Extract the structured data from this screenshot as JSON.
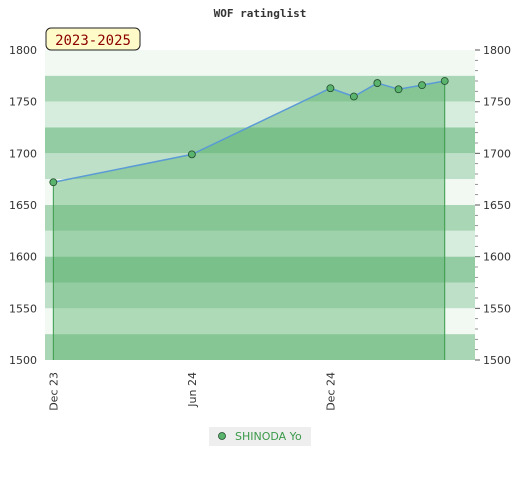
{
  "chart_data": {
    "type": "area",
    "title": "WOF ratinglist",
    "period_badge": "2023-2025",
    "x_ticks": [
      "Dec 23",
      "Jun 24",
      "Dec 24"
    ],
    "x_tick_dates": [
      "2023-12-01",
      "2024-06-01",
      "2024-12-01"
    ],
    "x_range": [
      "2023-11-20",
      "2025-06-10"
    ],
    "ylim": [
      1500,
      1800
    ],
    "y_ticks": [
      1500,
      1550,
      1600,
      1650,
      1700,
      1750,
      1800
    ],
    "y_axis": "both sides",
    "series": [
      {
        "name": "SHINODA Yo",
        "dates": [
          "2023-12-01",
          "2024-06-01",
          "2024-12-01",
          "2025-01-01",
          "2025-02-01",
          "2025-03-01",
          "2025-04-01",
          "2025-05-01"
        ],
        "values": [
          1672,
          1699,
          1763,
          1755,
          1768,
          1762,
          1766,
          1770
        ]
      }
    ],
    "legend": "bottom-center",
    "colors": {
      "line": "#5b9bd5",
      "area": "#5ab46e",
      "marker": "#5ab46e",
      "legend_text": "#3a9a4a",
      "band_dark": "#7fc494",
      "band_light": "#f2f9f3"
    }
  }
}
